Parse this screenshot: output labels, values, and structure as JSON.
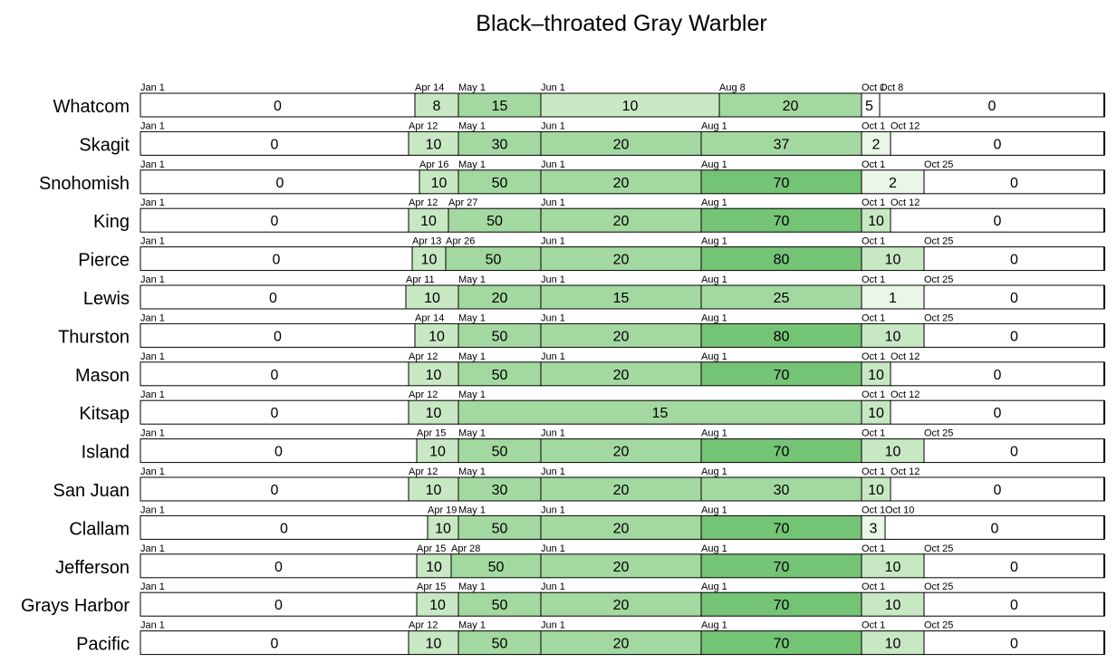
{
  "chart_data": {
    "type": "table",
    "title": "Black–throated Gray Warbler",
    "color_scale": {
      "0": "#ffffff",
      "1": "#eaf6e8",
      "2": "#eaf6e8",
      "3": "#eaf6e8",
      "5": "#ffffff",
      "8": "#c8e8c4",
      "10": "#c8e8c4",
      "15": "#a3d9a0",
      "20": "#a3d9a0",
      "25": "#a3d9a0",
      "30": "#a3d9a0",
      "37": "#a3d9a0",
      "50": "#a3d9a0",
      "70": "#74c476",
      "80": "#74c476"
    },
    "rows": [
      {
        "county": "Whatcom",
        "segments": [
          {
            "start": "Jan 1",
            "value": 0
          },
          {
            "start": "Apr 14",
            "value": 8
          },
          {
            "start": "May 1",
            "value": 15
          },
          {
            "start": "Jun 1",
            "value": 10
          },
          {
            "start": "Aug 8",
            "value": 20
          },
          {
            "start": "Oct 1",
            "value": 5
          },
          {
            "start": "Oct 8",
            "value": 0
          }
        ]
      },
      {
        "county": "Skagit",
        "segments": [
          {
            "start": "Jan 1",
            "value": 0
          },
          {
            "start": "Apr 12",
            "value": 10
          },
          {
            "start": "May 1",
            "value": 30
          },
          {
            "start": "Jun 1",
            "value": 20
          },
          {
            "start": "Aug 1",
            "value": 37
          },
          {
            "start": "Oct 1",
            "value": 2
          },
          {
            "start": "Oct 12",
            "value": 0
          }
        ]
      },
      {
        "county": "Snohomish",
        "segments": [
          {
            "start": "Jan 1",
            "value": 0
          },
          {
            "start": "Apr 16",
            "value": 10
          },
          {
            "start": "May 1",
            "value": 50
          },
          {
            "start": "Jun 1",
            "value": 20
          },
          {
            "start": "Aug 1",
            "value": 70
          },
          {
            "start": "Oct 1",
            "value": 2
          },
          {
            "start": "Oct 25",
            "value": 0
          }
        ]
      },
      {
        "county": "King",
        "segments": [
          {
            "start": "Jan 1",
            "value": 0
          },
          {
            "start": "Apr 12",
            "value": 10
          },
          {
            "start": "Apr 27",
            "value": 50
          },
          {
            "start": "Jun 1",
            "value": 20
          },
          {
            "start": "Aug 1",
            "value": 70
          },
          {
            "start": "Oct 1",
            "value": 10
          },
          {
            "start": "Oct 12",
            "value": 0
          }
        ]
      },
      {
        "county": "Pierce",
        "segments": [
          {
            "start": "Jan 1",
            "value": 0
          },
          {
            "start": "Apr 13",
            "value": 10
          },
          {
            "start": "Apr 26",
            "value": 50
          },
          {
            "start": "Jun 1",
            "value": 20
          },
          {
            "start": "Aug 1",
            "value": 80
          },
          {
            "start": "Oct 1",
            "value": 10
          },
          {
            "start": "Oct 25",
            "value": 0
          }
        ]
      },
      {
        "county": "Lewis",
        "segments": [
          {
            "start": "Jan 1",
            "value": 0
          },
          {
            "start": "Apr 11",
            "value": 10
          },
          {
            "start": "May 1",
            "value": 20
          },
          {
            "start": "Jun 1",
            "value": 15
          },
          {
            "start": "Aug 1",
            "value": 25
          },
          {
            "start": "Oct 1",
            "value": 1
          },
          {
            "start": "Oct 25",
            "value": 0
          }
        ]
      },
      {
        "county": "Thurston",
        "segments": [
          {
            "start": "Jan 1",
            "value": 0
          },
          {
            "start": "Apr 14",
            "value": 10
          },
          {
            "start": "May 1",
            "value": 50
          },
          {
            "start": "Jun 1",
            "value": 20
          },
          {
            "start": "Aug 1",
            "value": 80
          },
          {
            "start": "Oct 1",
            "value": 10
          },
          {
            "start": "Oct 25",
            "value": 0
          }
        ]
      },
      {
        "county": "Mason",
        "segments": [
          {
            "start": "Jan 1",
            "value": 0
          },
          {
            "start": "Apr 12",
            "value": 10
          },
          {
            "start": "May 1",
            "value": 50
          },
          {
            "start": "Jun 1",
            "value": 20
          },
          {
            "start": "Aug 1",
            "value": 70
          },
          {
            "start": "Oct 1",
            "value": 10
          },
          {
            "start": "Oct 12",
            "value": 0
          }
        ]
      },
      {
        "county": "Kitsap",
        "segments": [
          {
            "start": "Jan 1",
            "value": 0
          },
          {
            "start": "Apr 12",
            "value": 10
          },
          {
            "start": "May 1",
            "value": 15
          },
          {
            "start": "Oct 1",
            "value": 10
          },
          {
            "start": "Oct 12",
            "value": 0
          }
        ]
      },
      {
        "county": "Island",
        "segments": [
          {
            "start": "Jan 1",
            "value": 0
          },
          {
            "start": "Apr 15",
            "value": 10
          },
          {
            "start": "May 1",
            "value": 50
          },
          {
            "start": "Jun 1",
            "value": 20
          },
          {
            "start": "Aug 1",
            "value": 70
          },
          {
            "start": "Oct 1",
            "value": 10
          },
          {
            "start": "Oct 25",
            "value": 0
          }
        ]
      },
      {
        "county": "San Juan",
        "segments": [
          {
            "start": "Jan 1",
            "value": 0
          },
          {
            "start": "Apr 12",
            "value": 10
          },
          {
            "start": "May 1",
            "value": 30
          },
          {
            "start": "Jun 1",
            "value": 20
          },
          {
            "start": "Aug 1",
            "value": 30
          },
          {
            "start": "Oct 1",
            "value": 10
          },
          {
            "start": "Oct 12",
            "value": 0
          }
        ]
      },
      {
        "county": "Clallam",
        "segments": [
          {
            "start": "Jan 1",
            "value": 0
          },
          {
            "start": "Apr 19",
            "value": 10
          },
          {
            "start": "May 1",
            "value": 50
          },
          {
            "start": "Jun 1",
            "value": 20
          },
          {
            "start": "Aug 1",
            "value": 70
          },
          {
            "start": "Oct 1",
            "value": 3
          },
          {
            "start": "Oct 10",
            "value": 0
          }
        ]
      },
      {
        "county": "Jefferson",
        "segments": [
          {
            "start": "Jan 1",
            "value": 0
          },
          {
            "start": "Apr 15",
            "value": 10
          },
          {
            "start": "Apr 28",
            "value": 50
          },
          {
            "start": "Jun 1",
            "value": 20
          },
          {
            "start": "Aug 1",
            "value": 70
          },
          {
            "start": "Oct 1",
            "value": 10
          },
          {
            "start": "Oct 25",
            "value": 0
          }
        ]
      },
      {
        "county": "Grays Harbor",
        "segments": [
          {
            "start": "Jan 1",
            "value": 0
          },
          {
            "start": "Apr 15",
            "value": 10
          },
          {
            "start": "May 1",
            "value": 50
          },
          {
            "start": "Jun 1",
            "value": 20
          },
          {
            "start": "Aug 1",
            "value": 70
          },
          {
            "start": "Oct 1",
            "value": 10
          },
          {
            "start": "Oct 25",
            "value": 0
          }
        ]
      },
      {
        "county": "Pacific",
        "segments": [
          {
            "start": "Jan 1",
            "value": 0
          },
          {
            "start": "Apr 12",
            "value": 10
          },
          {
            "start": "May 1",
            "value": 50
          },
          {
            "start": "Jun 1",
            "value": 20
          },
          {
            "start": "Aug 1",
            "value": 70
          },
          {
            "start": "Oct 1",
            "value": 10
          },
          {
            "start": "Oct 25",
            "value": 0
          }
        ]
      }
    ]
  }
}
